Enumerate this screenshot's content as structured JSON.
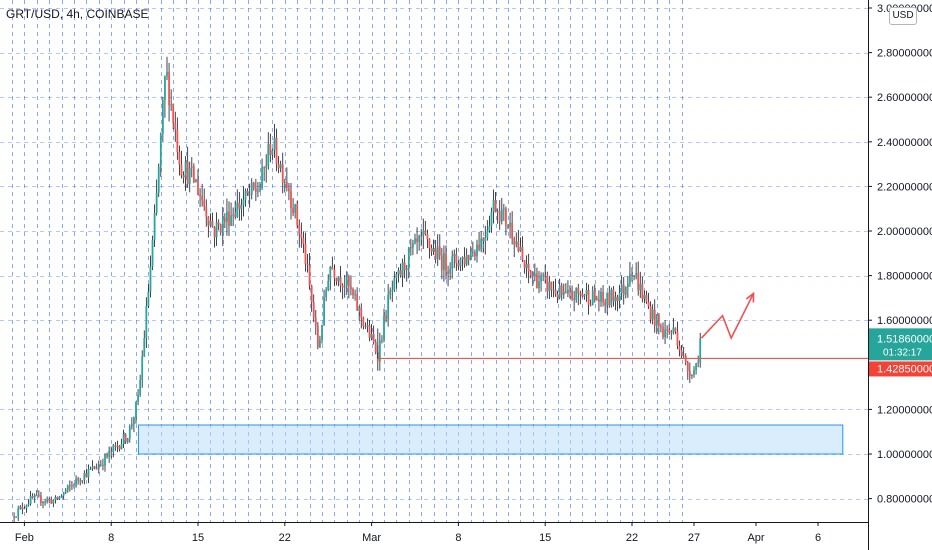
{
  "header": {
    "symbol_title": "GRT/USD, 4h, COINBASE",
    "currency": "USD"
  },
  "colors": {
    "up": "#26a69a",
    "down": "#ef5350",
    "wick": "#131722",
    "grid": "#2962ff",
    "level_line": "#ef5350",
    "zone_fill": "#bbdefb",
    "zone_stroke": "#2196f3",
    "arrow": "#ef5350",
    "last_price_bg": "#26a69a",
    "level_price_bg": "#f44336"
  },
  "price_labels": {
    "last_price": "1.51860000",
    "countdown": "01:32:17",
    "level_price": "1.42850000"
  },
  "chart_data": {
    "type": "candlestick",
    "yaxis": {
      "min": 0.7,
      "max": 3.0,
      "ticks": [
        {
          "value": 3.0,
          "label": "3.00000000"
        },
        {
          "value": 2.8,
          "label": "2.80000000"
        },
        {
          "value": 2.6,
          "label": "2.60000000"
        },
        {
          "value": 2.4,
          "label": "2.40000000"
        },
        {
          "value": 2.2,
          "label": "2.20000000"
        },
        {
          "value": 2.0,
          "label": "2.00000000"
        },
        {
          "value": 1.8,
          "label": "1.80000000"
        },
        {
          "value": 1.6,
          "label": "1.60000000"
        },
        {
          "value": 1.2,
          "label": "1.20000000"
        },
        {
          "value": 1.0,
          "label": "1.00000000"
        },
        {
          "value": 0.8,
          "label": "0.80000000"
        }
      ]
    },
    "xaxis": {
      "ticks": [
        {
          "day": 1,
          "label": "Feb"
        },
        {
          "day": 8,
          "label": "8"
        },
        {
          "day": 15,
          "label": "15"
        },
        {
          "day": 22,
          "label": "22"
        },
        {
          "day": 29,
          "label": "Mar"
        },
        {
          "day": 36,
          "label": "8"
        },
        {
          "day": 43,
          "label": "15"
        },
        {
          "day": 50,
          "label": "22"
        },
        {
          "day": 55,
          "label": "27"
        },
        {
          "day": 60,
          "label": "Apr"
        },
        {
          "day": 65,
          "label": "6"
        }
      ]
    },
    "anchors": [
      [
        0,
        0.72
      ],
      [
        1.6,
        0.8
      ],
      [
        3.5,
        0.79
      ],
      [
        5.6,
        0.9
      ],
      [
        7,
        0.95
      ],
      [
        8.2,
        1.02
      ],
      [
        9.4,
        1.09
      ],
      [
        10.2,
        1.25
      ],
      [
        11.6,
        2.1
      ],
      [
        12.4,
        2.72
      ],
      [
        13.6,
        2.3
      ],
      [
        14.8,
        2.22
      ],
      [
        16.3,
        2.0
      ],
      [
        18,
        2.1
      ],
      [
        20,
        2.2
      ],
      [
        20.9,
        2.4
      ],
      [
        22.3,
        2.2
      ],
      [
        23.6,
        1.9
      ],
      [
        24.7,
        1.47
      ],
      [
        25.6,
        1.85
      ],
      [
        27.1,
        1.75
      ],
      [
        28.3,
        1.6
      ],
      [
        29.5,
        1.45
      ],
      [
        30.4,
        1.7
      ],
      [
        32.1,
        1.9
      ],
      [
        33.2,
        1.96
      ],
      [
        35,
        1.85
      ],
      [
        36.6,
        1.88
      ],
      [
        38,
        1.97
      ],
      [
        38.9,
        2.13
      ],
      [
        40.4,
        2.0
      ],
      [
        41.4,
        1.82
      ],
      [
        42.8,
        1.77
      ],
      [
        44.6,
        1.7
      ],
      [
        46.1,
        1.72
      ],
      [
        47.8,
        1.68
      ],
      [
        49.4,
        1.74
      ],
      [
        49.9,
        1.85
      ],
      [
        51.1,
        1.68
      ],
      [
        52.4,
        1.55
      ],
      [
        53.5,
        1.55
      ],
      [
        54.4,
        1.38
      ],
      [
        55.1,
        1.38
      ],
      [
        55.6,
        1.5186
      ]
    ],
    "level_line": {
      "value": 1.4285,
      "from_day": 29.5
    },
    "demand_zone": {
      "low": 1.0,
      "high": 1.13,
      "from_day": 10.2,
      "to_day": 67
    },
    "projection_arrow": [
      [
        55.6,
        1.52
      ],
      [
        57.3,
        1.62
      ],
      [
        58,
        1.52
      ],
      [
        59.8,
        1.72
      ]
    ]
  }
}
